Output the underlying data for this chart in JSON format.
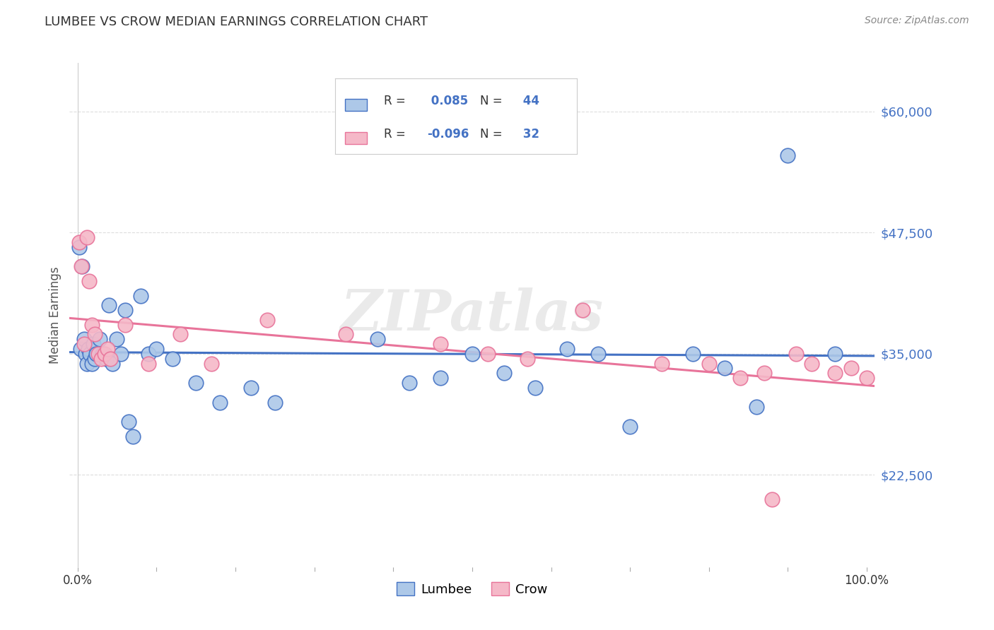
{
  "title": "LUMBEE VS CROW MEDIAN EARNINGS CORRELATION CHART",
  "source": "Source: ZipAtlas.com",
  "ylabel": "Median Earnings",
  "yticks": [
    22500,
    35000,
    47500,
    60000
  ],
  "ytick_labels": [
    "$22,500",
    "$35,000",
    "$47,500",
    "$60,000"
  ],
  "ylim": [
    13000,
    65000
  ],
  "xlim": [
    -0.01,
    1.01
  ],
  "lumbee_R": "0.085",
  "lumbee_N": "44",
  "crow_R": "-0.096",
  "crow_N": "32",
  "lumbee_color": "#adc8e8",
  "crow_color": "#f5b8c8",
  "lumbee_line_color": "#4472c4",
  "crow_line_color": "#e8749a",
  "lumbee_x": [
    0.002,
    0.004,
    0.006,
    0.008,
    0.01,
    0.012,
    0.014,
    0.016,
    0.018,
    0.02,
    0.022,
    0.024,
    0.028,
    0.032,
    0.036,
    0.04,
    0.044,
    0.05,
    0.055,
    0.06,
    0.065,
    0.07,
    0.08,
    0.09,
    0.1,
    0.12,
    0.15,
    0.18,
    0.22,
    0.25,
    0.38,
    0.42,
    0.46,
    0.5,
    0.54,
    0.58,
    0.62,
    0.66,
    0.7,
    0.78,
    0.82,
    0.86,
    0.9,
    0.96
  ],
  "lumbee_y": [
    46000,
    35500,
    44000,
    36500,
    35000,
    34000,
    35500,
    35000,
    34000,
    36000,
    34500,
    35000,
    36500,
    35000,
    34500,
    40000,
    34000,
    36500,
    35000,
    39500,
    28000,
    26500,
    41000,
    35000,
    35500,
    34500,
    32000,
    30000,
    31500,
    30000,
    36500,
    32000,
    32500,
    35000,
    33000,
    31500,
    35500,
    35000,
    27500,
    35000,
    33500,
    29500,
    55500,
    35000
  ],
  "crow_x": [
    0.002,
    0.005,
    0.008,
    0.012,
    0.015,
    0.018,
    0.022,
    0.026,
    0.03,
    0.034,
    0.038,
    0.042,
    0.06,
    0.09,
    0.13,
    0.17,
    0.24,
    0.34,
    0.46,
    0.52,
    0.57,
    0.64,
    0.74,
    0.8,
    0.84,
    0.87,
    0.88,
    0.91,
    0.93,
    0.96,
    0.98,
    1.0
  ],
  "crow_y": [
    46500,
    44000,
    36000,
    47000,
    42500,
    38000,
    37000,
    35000,
    34500,
    35000,
    35500,
    34500,
    38000,
    34000,
    37000,
    34000,
    38500,
    37000,
    36000,
    35000,
    34500,
    39500,
    34000,
    34000,
    32500,
    33000,
    20000,
    35000,
    34000,
    33000,
    33500,
    32500
  ],
  "watermark": "ZIPatlas",
  "background_color": "#ffffff",
  "grid_color": "#dddddd"
}
